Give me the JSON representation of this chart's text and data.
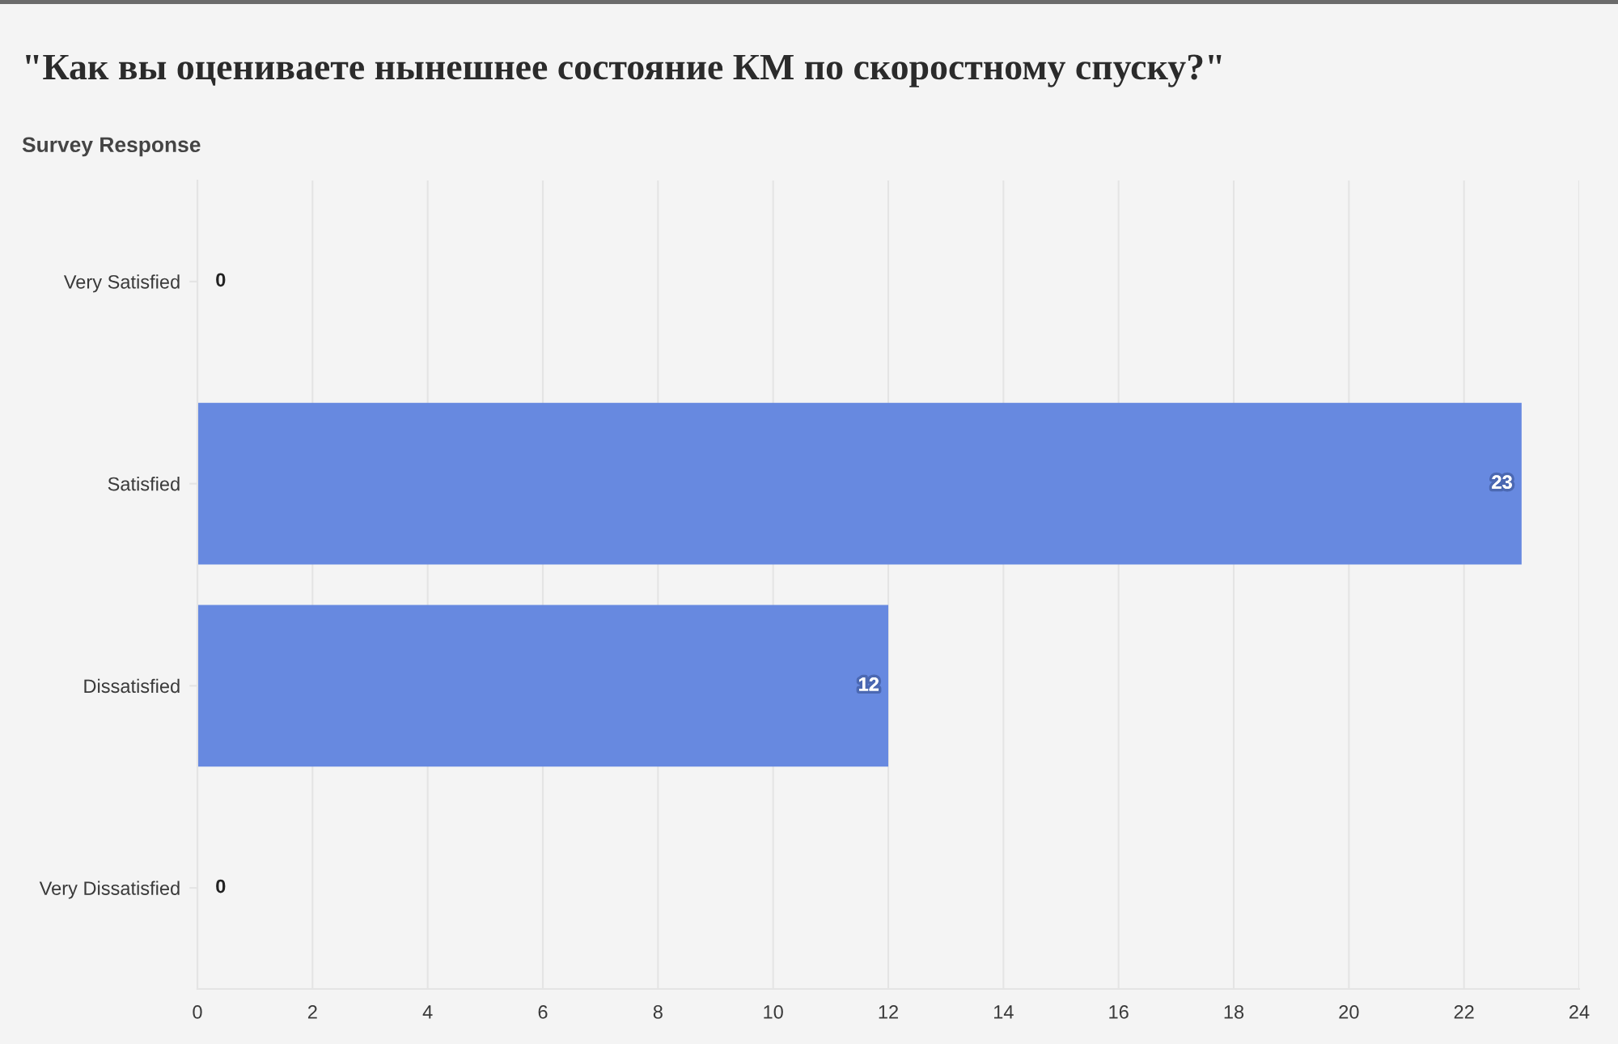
{
  "chart_data": {
    "type": "bar",
    "orientation": "horizontal",
    "title": "\"Как вы оцениваете нынешнее состояние КМ по скоростному спуску?\"",
    "ylabel": "Survey Response",
    "categories": [
      "Very Satisfied",
      "Satisfied",
      "Dissatisfied",
      "Very Dissatisfied"
    ],
    "values": [
      0,
      23,
      12,
      0
    ],
    "color": "#6789e0",
    "xlim": [
      0,
      24
    ],
    "xticks": [
      0,
      2,
      4,
      6,
      8,
      10,
      12,
      14,
      16,
      18,
      20,
      22,
      24
    ],
    "grid": "x",
    "data_labels": true
  }
}
